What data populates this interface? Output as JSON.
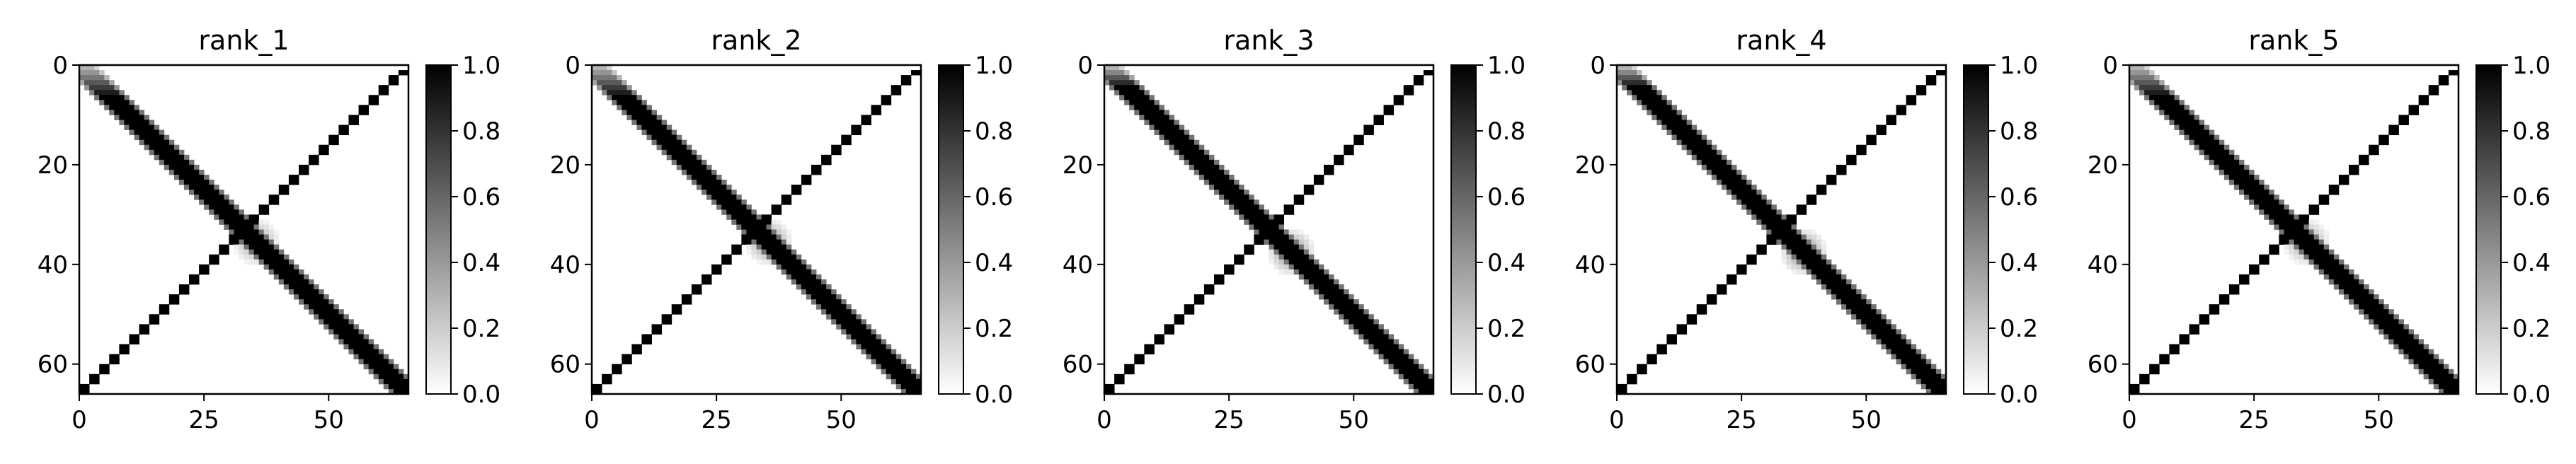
{
  "chart_data": [
    {
      "type": "heatmap",
      "title": "rank_1",
      "matrix_size": [
        66,
        66
      ],
      "x_ticks": [
        "0",
        "25",
        "50"
      ],
      "y_ticks": [
        "0",
        "20",
        "40",
        "60"
      ],
      "colorbar": {
        "min": 0.0,
        "max": 1.0,
        "ticks": [
          "0.0",
          "0.2",
          "0.4",
          "0.6",
          "0.8",
          "1.0"
        ],
        "colormap": "gray_r"
      },
      "values": {
        "main_diagonal_band": {
          "value": 1.0,
          "half_width": 3.4,
          "start_fade_rows": 6
        },
        "anti_diagonal": {
          "value": 1.0,
          "pattern": "alternating blocks",
          "row_range": [
            1,
            65
          ]
        },
        "center_blur": {
          "center": [
            35,
            35
          ],
          "value": 0.4
        }
      }
    },
    {
      "type": "heatmap",
      "title": "rank_2",
      "matrix_size": [
        66,
        66
      ],
      "x_ticks": [
        "0",
        "25",
        "50"
      ],
      "y_ticks": [
        "0",
        "20",
        "40",
        "60"
      ],
      "colorbar": {
        "min": 0.0,
        "max": 1.0,
        "ticks": [
          "0.0",
          "0.2",
          "0.4",
          "0.6",
          "0.8",
          "1.0"
        ],
        "colormap": "gray_r"
      },
      "values": {
        "main_diagonal_band": {
          "value": 1.0,
          "half_width": 3.4,
          "start_fade_rows": 6
        },
        "anti_diagonal": {
          "value": 1.0,
          "pattern": "alternating blocks",
          "row_range": [
            1,
            65
          ]
        },
        "center_blur": {
          "center": [
            35,
            35
          ],
          "value": 0.45
        }
      }
    },
    {
      "type": "heatmap",
      "title": "rank_3",
      "matrix_size": [
        66,
        66
      ],
      "x_ticks": [
        "0",
        "25",
        "50"
      ],
      "y_ticks": [
        "0",
        "20",
        "40",
        "60"
      ],
      "colorbar": {
        "min": 0.0,
        "max": 1.0,
        "ticks": [
          "0.0",
          "0.2",
          "0.4",
          "0.6",
          "0.8",
          "1.0"
        ],
        "colormap": "gray_r"
      },
      "values": {
        "main_diagonal_band": {
          "value": 1.0,
          "half_width": 3.6,
          "start_fade_rows": 4
        },
        "anti_diagonal": {
          "value": 1.0,
          "pattern": "alternating blocks",
          "row_range": [
            1,
            65
          ]
        },
        "center_blur": {
          "center": [
            37,
            37
          ],
          "value": 0.5
        }
      }
    },
    {
      "type": "heatmap",
      "title": "rank_4",
      "matrix_size": [
        66,
        66
      ],
      "x_ticks": [
        "0",
        "25",
        "50"
      ],
      "y_ticks": [
        "0",
        "20",
        "40",
        "60"
      ],
      "colorbar": {
        "min": 0.0,
        "max": 1.0,
        "ticks": [
          "0.0",
          "0.2",
          "0.4",
          "0.6",
          "0.8",
          "1.0"
        ],
        "colormap": "gray_r"
      },
      "values": {
        "main_diagonal_band": {
          "value": 1.0,
          "half_width": 3.6,
          "start_fade_rows": 4
        },
        "anti_diagonal": {
          "value": 1.0,
          "pattern": "alternating blocks",
          "row_range": [
            1,
            65
          ]
        },
        "center_blur": {
          "center": [
            37,
            37
          ],
          "value": 0.5
        }
      }
    },
    {
      "type": "heatmap",
      "title": "rank_5",
      "matrix_size": [
        66,
        66
      ],
      "x_ticks": [
        "0",
        "25",
        "50"
      ],
      "y_ticks": [
        "0",
        "20",
        "40",
        "60"
      ],
      "colorbar": {
        "min": 0.0,
        "max": 1.0,
        "ticks": [
          "0.0",
          "0.2",
          "0.4",
          "0.6",
          "0.8",
          "1.0"
        ],
        "colormap": "gray_r"
      },
      "values": {
        "main_diagonal_band": {
          "value": 1.0,
          "half_width": 3.4,
          "start_fade_rows": 6
        },
        "anti_diagonal": {
          "value": 1.0,
          "pattern": "alternating blocks",
          "row_range": [
            1,
            65
          ]
        },
        "center_blur": {
          "center": [
            35,
            35
          ],
          "value": 0.4
        }
      }
    }
  ]
}
